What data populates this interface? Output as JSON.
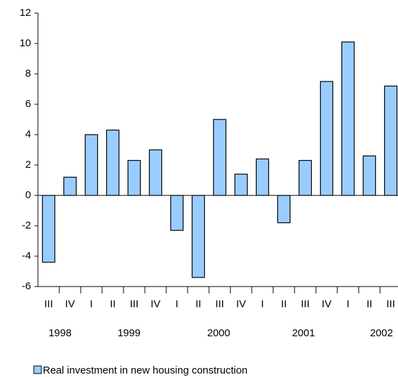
{
  "chart_data": {
    "type": "bar",
    "categories": [
      "III",
      "IV",
      "I",
      "II",
      "III",
      "IV",
      "I",
      "II",
      "III",
      "IV",
      "I",
      "II",
      "III",
      "IV",
      "I",
      "II",
      "III"
    ],
    "years": [
      "1998",
      "1999",
      "2000",
      "2001",
      "2002"
    ],
    "series": [
      {
        "name": "Real investment in new housing construction",
        "color": "#99ccff",
        "values": [
          -4.4,
          1.2,
          4.0,
          4.3,
          2.3,
          3.0,
          -2.3,
          -5.4,
          5.0,
          1.4,
          2.4,
          -1.8,
          2.3,
          7.5,
          10.1,
          2.6,
          7.2
        ]
      }
    ],
    "ylim": [
      -6,
      12
    ],
    "yticks": [
      -6,
      -4,
      -2,
      0,
      2,
      4,
      6,
      8,
      10,
      12
    ],
    "grid": false,
    "legend": "bottom-left"
  }
}
